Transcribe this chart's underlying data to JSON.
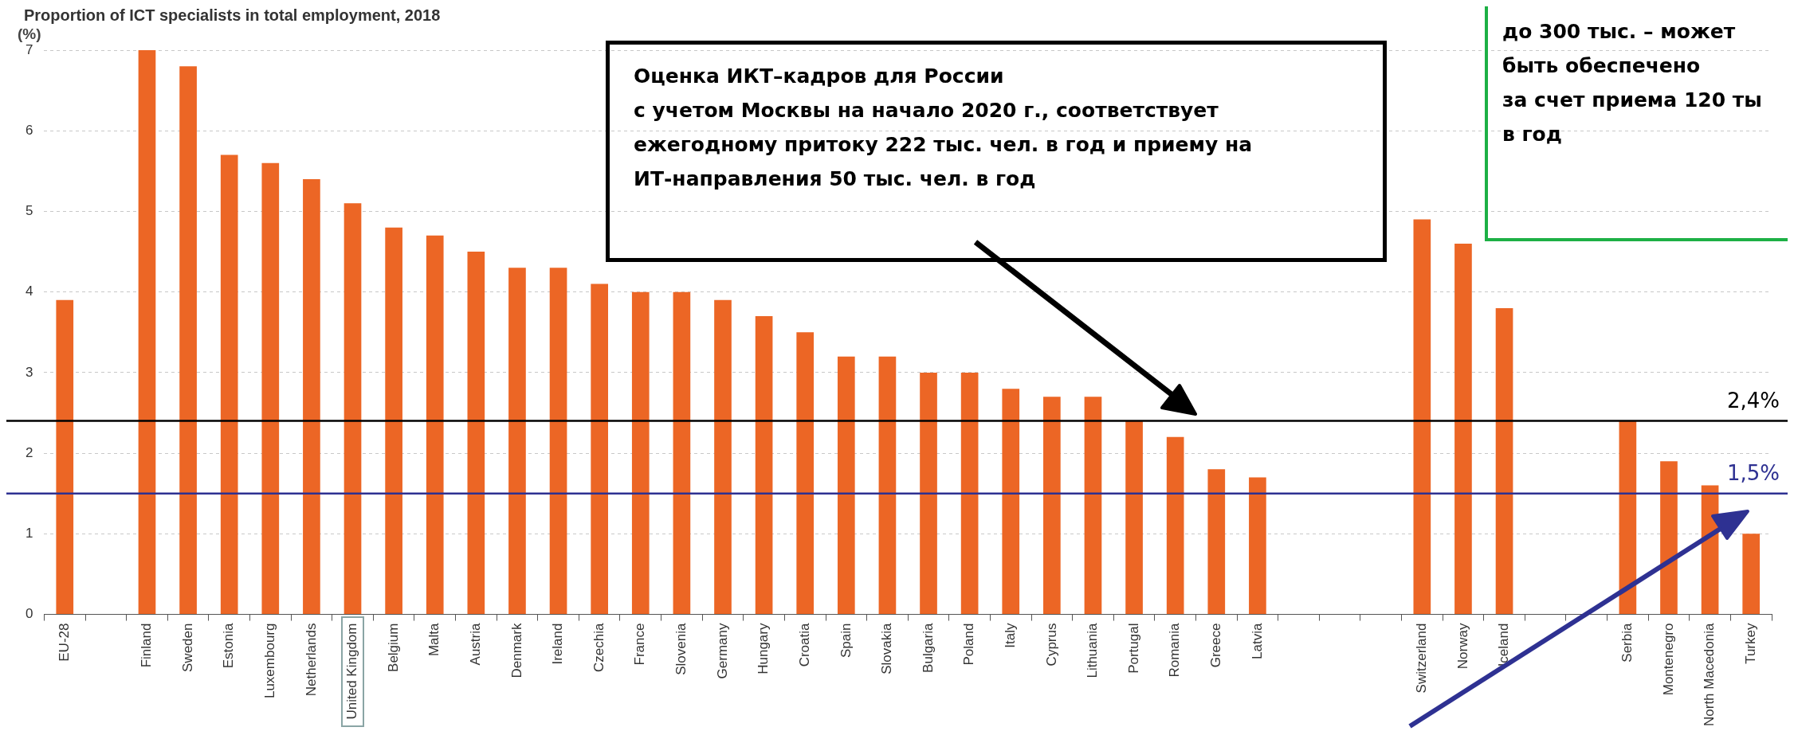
{
  "chart_data": {
    "type": "bar",
    "title": "Proportion of ICT specialists in total employment, 2018",
    "ylabel": "(%)",
    "categories": [
      "EU-28",
      null,
      "Finland",
      "Sweden",
      "Estonia",
      "Luxembourg",
      "Netherlands",
      "United Kingdom",
      "Belgium",
      "Malta",
      "Austria",
      "Denmark",
      "Ireland",
      "Czechia",
      "France",
      "Slovenia",
      "Germany",
      "Hungary",
      "Croatia",
      "Spain",
      "Slovakia",
      "Bulgaria",
      "Poland",
      "Italy",
      "Cyprus",
      "Lithuania",
      "Portugal",
      "Romania",
      "Greece",
      "Latvia",
      null,
      null,
      null,
      "Switzerland",
      "Norway",
      "Iceland",
      null,
      null,
      "Serbia",
      "Montenegro",
      "North Macedonia",
      "Turkey"
    ],
    "values": [
      3.9,
      null,
      7.0,
      6.8,
      5.7,
      5.6,
      5.4,
      5.1,
      4.8,
      4.7,
      4.5,
      4.3,
      4.3,
      4.1,
      4.0,
      4.0,
      3.9,
      3.7,
      3.5,
      3.2,
      3.2,
      3.0,
      3.0,
      2.8,
      2.7,
      2.7,
      2.4,
      2.2,
      1.8,
      1.7,
      null,
      null,
      null,
      4.9,
      4.6,
      3.8,
      null,
      null,
      2.4,
      1.9,
      1.6,
      1.0
    ],
    "color": "#ec6625",
    "ylim": [
      0,
      7
    ],
    "yticks": [
      0,
      1,
      2,
      3,
      4,
      5,
      6,
      7
    ],
    "grid": "y",
    "legend": false,
    "ref_lines": [
      {
        "axis": "y",
        "value": 2.4,
        "label": "2,4%",
        "color": "#000000"
      },
      {
        "axis": "y",
        "value": 1.5,
        "label": "1,5%",
        "color": "#2e3192"
      }
    ],
    "annotations": [
      "Оценка ИКТ–кадров для России\nс учетом Москвы на начало 2020 г., соответствует\nежегодному притоку 222 тыс. чел. в год и приему на\nИТ-направления 50 тыс. чел. в год",
      "до 300 тыс. – может\nбыть обеспечено\nза счет приема 120 ты\nв год"
    ]
  }
}
